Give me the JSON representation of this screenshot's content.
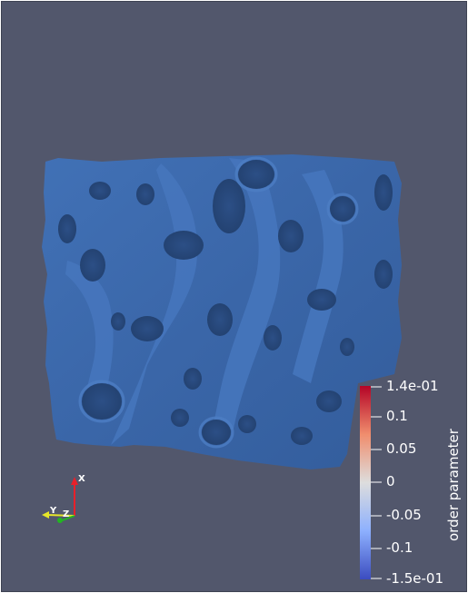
{
  "viewport": {
    "background": "#52576c",
    "object_color": "#3b67a8",
    "object_name": "porous-structure-surface"
  },
  "colorbar": {
    "title": "order parameter",
    "labels": [
      "1.4e-01",
      "0.1",
      "0.05",
      "0",
      "-0.05",
      "-0.1",
      "-1.5e-01"
    ],
    "colors": {
      "max": "#b40426",
      "upper": "#f08d6d",
      "mid": "#dddddd",
      "lower": "#8db0fe",
      "min": "#3b4cc0"
    }
  },
  "orientation_axes": {
    "x_label": "X",
    "y_label": "Y",
    "z_label": "Z",
    "x_color": "#e8202a",
    "y_color": "#e6e629",
    "z_color": "#22b522"
  }
}
